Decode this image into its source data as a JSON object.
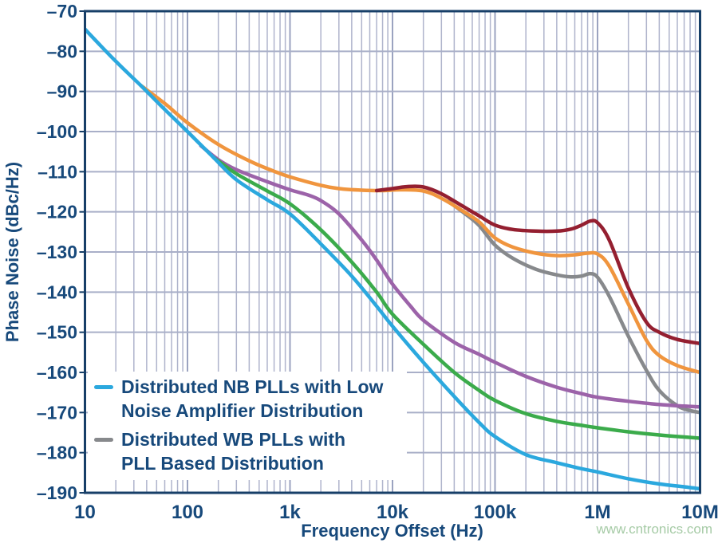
{
  "page": {
    "background": "#FFFFFF",
    "watermark": "www.cntronics.com",
    "watermark_color": "#A6CBA6"
  },
  "chart_data": {
    "type": "line",
    "title": "",
    "xlabel": "Frequency Offset (Hz)",
    "ylabel": "Phase Noise (dBc/Hz)",
    "x_scale": "log",
    "xlim": [
      10,
      10000000
    ],
    "ylim": [
      -190,
      -70
    ],
    "grid": true,
    "legend_position": "inside-bottom-left",
    "x_tick_values": [
      10,
      100,
      1000,
      10000,
      100000,
      1000000,
      10000000
    ],
    "x_tick_labels": [
      "10",
      "100",
      "1k",
      "10k",
      "100k",
      "1M",
      "10M"
    ],
    "y_tick_values": [
      -70,
      -80,
      -90,
      -100,
      -110,
      -120,
      -130,
      -140,
      -150,
      -160,
      -170,
      -180,
      -190
    ],
    "y_tick_labels": [
      "–70",
      "–80",
      "–90",
      "–100",
      "–110",
      "–120",
      "–130",
      "–140",
      "–150",
      "–160",
      "–170",
      "–180",
      "–190"
    ],
    "colors": {
      "text_navy": "#17497B",
      "border_navy": "#173F68",
      "grid_minor": "#AFB4CC",
      "grid_major": "#9BA3C0",
      "grid_horizontal": "#A9AFC8",
      "plot_background": "#FFFFFF"
    },
    "series": [
      {
        "id": "gray-wb-plls",
        "color": "#87898C",
        "points": [
          [
            35000,
            -117.4
          ],
          [
            50000,
            -120.3
          ],
          [
            70000,
            -123.4
          ],
          [
            100000,
            -128.3
          ],
          [
            150000,
            -131.6
          ],
          [
            250000,
            -134.3
          ],
          [
            400000,
            -135.7
          ],
          [
            550000,
            -136.2
          ],
          [
            700000,
            -136.0
          ],
          [
            850000,
            -135.4
          ],
          [
            1000000,
            -136.3
          ],
          [
            1300000,
            -141.0
          ],
          [
            2000000,
            -151.0
          ],
          [
            3000000,
            -159.5
          ],
          [
            4000000,
            -164.5
          ],
          [
            6000000,
            -168.3
          ],
          [
            8000000,
            -169.5
          ],
          [
            10000000,
            -170.0
          ]
        ]
      },
      {
        "id": "orange-curve",
        "color": "#F0953E",
        "points": [
          [
            35,
            -88.5
          ],
          [
            60,
            -93.0
          ],
          [
            100,
            -97.8
          ],
          [
            200,
            -103.2
          ],
          [
            400,
            -107.3
          ],
          [
            700,
            -109.9
          ],
          [
            1000,
            -111.3
          ],
          [
            2000,
            -113.4
          ],
          [
            3000,
            -114.2
          ],
          [
            5000,
            -114.6
          ],
          [
            8000,
            -114.7
          ],
          [
            12000,
            -114.5
          ],
          [
            20000,
            -114.8
          ],
          [
            30000,
            -116.6
          ],
          [
            50000,
            -120.0
          ],
          [
            70000,
            -122.5
          ],
          [
            100000,
            -126.5
          ],
          [
            150000,
            -128.8
          ],
          [
            250000,
            -130.3
          ],
          [
            400000,
            -130.9
          ],
          [
            600000,
            -130.7
          ],
          [
            800000,
            -130.3
          ],
          [
            1000000,
            -130.5
          ],
          [
            1300000,
            -133.5
          ],
          [
            2000000,
            -143.0
          ],
          [
            3000000,
            -152.0
          ],
          [
            4000000,
            -155.8
          ],
          [
            6000000,
            -158.3
          ],
          [
            10000000,
            -160.0
          ]
        ]
      },
      {
        "id": "maroon-curve",
        "color": "#941F30",
        "points": [
          [
            7000,
            -114.7
          ],
          [
            10000,
            -114.2
          ],
          [
            14000,
            -113.7
          ],
          [
            20000,
            -113.8
          ],
          [
            30000,
            -115.5
          ],
          [
            50000,
            -118.8
          ],
          [
            70000,
            -121.0
          ],
          [
            100000,
            -123.3
          ],
          [
            150000,
            -124.4
          ],
          [
            250000,
            -124.8
          ],
          [
            400000,
            -124.8
          ],
          [
            550000,
            -124.3
          ],
          [
            700000,
            -123.3
          ],
          [
            850000,
            -122.3
          ],
          [
            1000000,
            -122.7
          ],
          [
            1300000,
            -127.0
          ],
          [
            2000000,
            -139.0
          ],
          [
            3000000,
            -147.5
          ],
          [
            4000000,
            -150.0
          ],
          [
            6000000,
            -151.8
          ],
          [
            10000000,
            -152.8
          ]
        ]
      },
      {
        "id": "purple-curve",
        "color": "#9C63A9",
        "points": [
          [
            135,
            -103.5
          ],
          [
            200,
            -107.0
          ],
          [
            300,
            -109.5
          ],
          [
            600,
            -112.5
          ],
          [
            1000,
            -114.5
          ],
          [
            1500,
            -115.8
          ],
          [
            2000,
            -117.2
          ],
          [
            3000,
            -120.5
          ],
          [
            5000,
            -127.0
          ],
          [
            7000,
            -132.0
          ],
          [
            10000,
            -138.0
          ],
          [
            15000,
            -143.5
          ],
          [
            20000,
            -147.0
          ],
          [
            40000,
            -152.5
          ],
          [
            70000,
            -155.5
          ],
          [
            100000,
            -157.5
          ],
          [
            200000,
            -161.0
          ],
          [
            400000,
            -163.7
          ],
          [
            700000,
            -165.3
          ],
          [
            1000000,
            -166.2
          ],
          [
            2000000,
            -167.2
          ],
          [
            4000000,
            -168.0
          ],
          [
            7000000,
            -168.4
          ],
          [
            10000000,
            -168.6
          ]
        ]
      },
      {
        "id": "green-curve",
        "color": "#3BAB4B",
        "points": [
          [
            180,
            -106.5
          ],
          [
            300,
            -110.5
          ],
          [
            600,
            -114.8
          ],
          [
            1000,
            -118.0
          ],
          [
            2000,
            -124.5
          ],
          [
            4000,
            -132.5
          ],
          [
            7000,
            -140.0
          ],
          [
            10000,
            -145.5
          ],
          [
            20000,
            -153.0
          ],
          [
            40000,
            -160.0
          ],
          [
            70000,
            -164.5
          ],
          [
            100000,
            -167.0
          ],
          [
            200000,
            -170.3
          ],
          [
            400000,
            -172.2
          ],
          [
            700000,
            -173.2
          ],
          [
            1000000,
            -173.8
          ],
          [
            2000000,
            -174.8
          ],
          [
            4000000,
            -175.6
          ],
          [
            7000000,
            -176.1
          ],
          [
            10000000,
            -176.4
          ]
        ]
      },
      {
        "id": "cyan-nb-plls",
        "color": "#2BA8DE",
        "points": [
          [
            10,
            -74.5
          ],
          [
            20,
            -82.5
          ],
          [
            35,
            -88.5
          ],
          [
            60,
            -94.5
          ],
          [
            100,
            -100.0
          ],
          [
            180,
            -106.5
          ],
          [
            300,
            -112.0
          ],
          [
            600,
            -117.0
          ],
          [
            1000,
            -120.5
          ],
          [
            2000,
            -128.0
          ],
          [
            4000,
            -136.0
          ],
          [
            7000,
            -143.5
          ],
          [
            10000,
            -148.5
          ],
          [
            20000,
            -157.5
          ],
          [
            40000,
            -166.0
          ],
          [
            70000,
            -172.5
          ],
          [
            100000,
            -176.0
          ],
          [
            200000,
            -180.5
          ],
          [
            400000,
            -182.5
          ],
          [
            700000,
            -184.0
          ],
          [
            1000000,
            -184.8
          ],
          [
            2000000,
            -186.5
          ],
          [
            4000000,
            -187.8
          ],
          [
            7000000,
            -188.5
          ],
          [
            10000000,
            -189.0
          ]
        ]
      }
    ],
    "legend": {
      "entries": [
        {
          "series": "cyan-nb-plls",
          "color": "#2BA8DE",
          "lines": [
            "Distributed NB PLLs with Low",
            "Noise Amplifier Distribution"
          ]
        },
        {
          "series": "gray-wb-plls",
          "color": "#87898C",
          "lines": [
            "Distributed WB PLLs with",
            "PLL Based Distribution"
          ]
        }
      ]
    }
  }
}
